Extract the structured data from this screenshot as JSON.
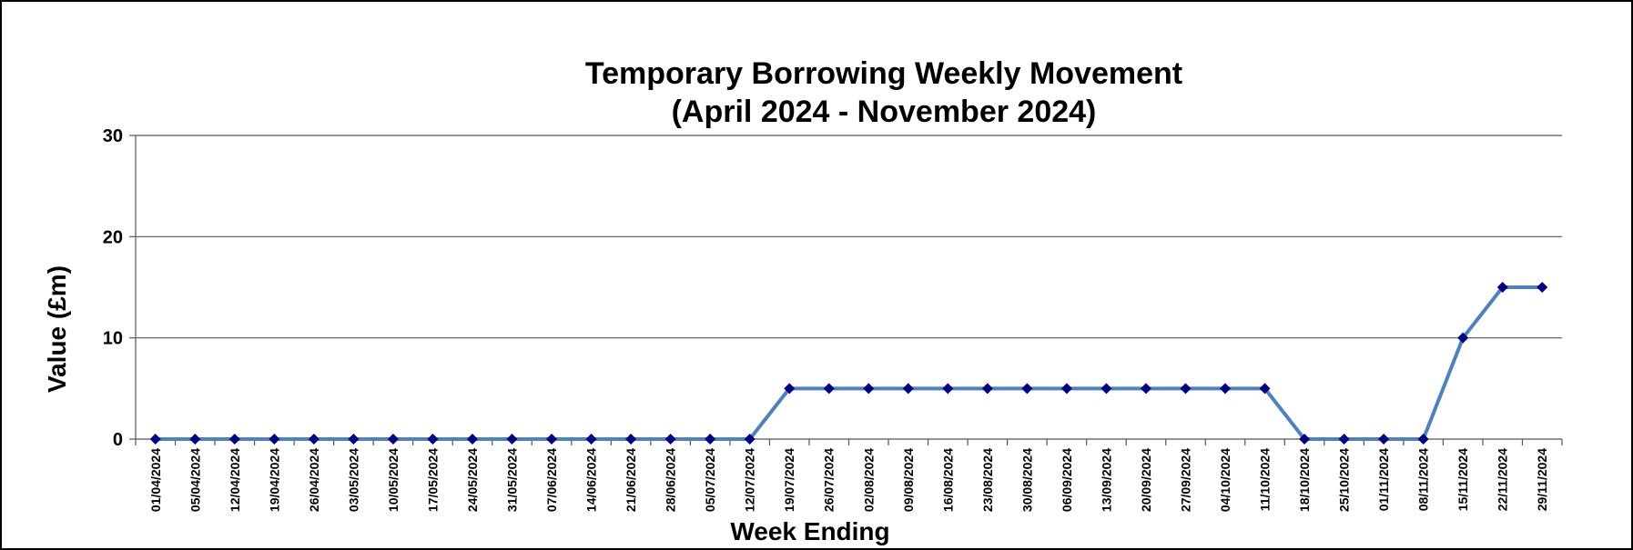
{
  "chart_data": {
    "type": "line",
    "title": "Temporary Borrowing Weekly Movement",
    "subtitle": "(April 2024 - November 2024)",
    "x_label": "Week Ending",
    "y_label": "Value (£m)",
    "categories": [
      "01/04/2024",
      "05/04/2024",
      "12/04/2024",
      "19/04/2024",
      "26/04/2024",
      "03/05/2024",
      "10/05/2024",
      "17/05/2024",
      "24/05/2024",
      "31/05/2024",
      "07/06/2024",
      "14/06/2024",
      "21/06/2024",
      "28/06/2024",
      "05/07/2024",
      "12/07/2024",
      "19/07/2024",
      "26/07/2024",
      "02/08/2024",
      "09/08/2024",
      "16/08/2024",
      "23/08/2024",
      "30/08/2024",
      "06/09/2024",
      "13/09/2024",
      "20/09/2024",
      "27/09/2024",
      "04/10/2024",
      "11/10/2024",
      "18/10/2024",
      "25/10/2024",
      "01/11/2024",
      "08/11/2024",
      "15/11/2024",
      "22/11/2024",
      "29/11/2024"
    ],
    "values": [
      0,
      0,
      0,
      0,
      0,
      0,
      0,
      0,
      0,
      0,
      0,
      0,
      0,
      0,
      0,
      0,
      5,
      5,
      5,
      5,
      5,
      5,
      5,
      5,
      5,
      5,
      5,
      5,
      5,
      0,
      0,
      0,
      0,
      10,
      15,
      15
    ],
    "color": "#4f81bd",
    "marker_color": "#000080",
    "ylim": [
      0,
      30
    ],
    "yticks": [
      0,
      10,
      20,
      30
    ],
    "grid": true
  }
}
